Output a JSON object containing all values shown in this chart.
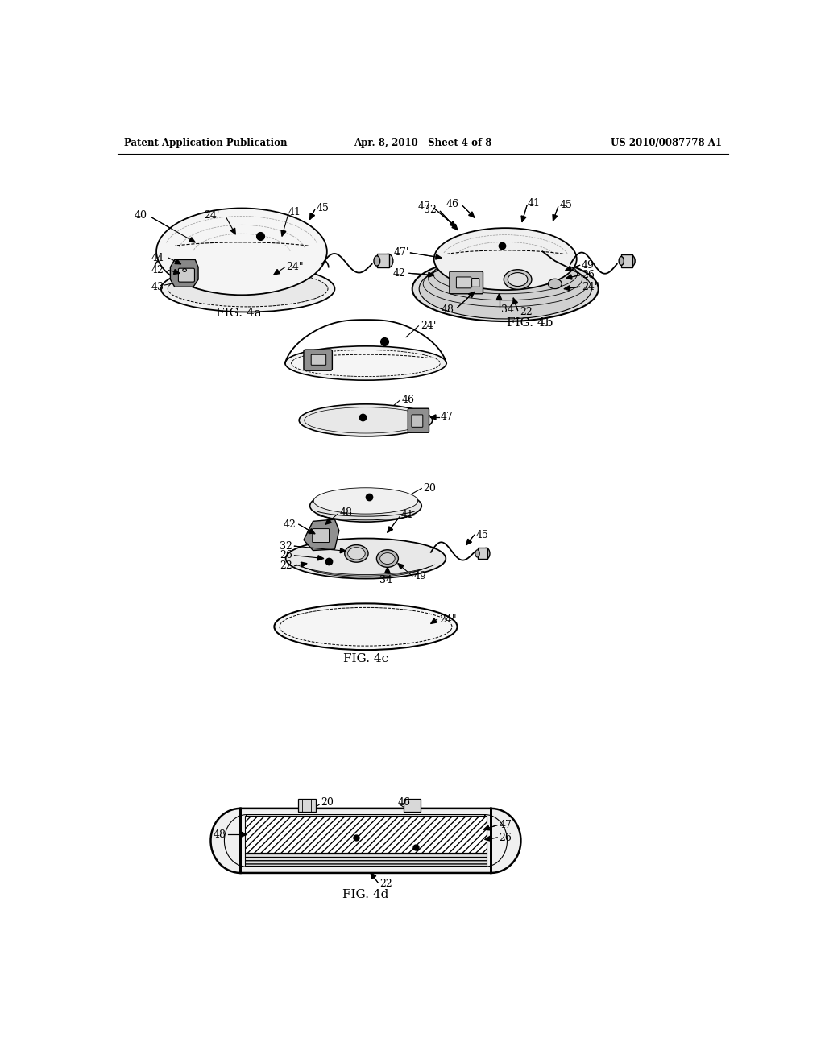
{
  "bg_color": "#ffffff",
  "title_left": "Patent Application Publication",
  "title_mid": "Apr. 8, 2010   Sheet 4 of 8",
  "title_right": "US 2010/0087778 A1",
  "fig4a_label": "FIG. 4a",
  "fig4b_label": "FIG. 4b",
  "fig4c_label": "FIG. 4c",
  "fig4d_label": "FIG. 4d"
}
